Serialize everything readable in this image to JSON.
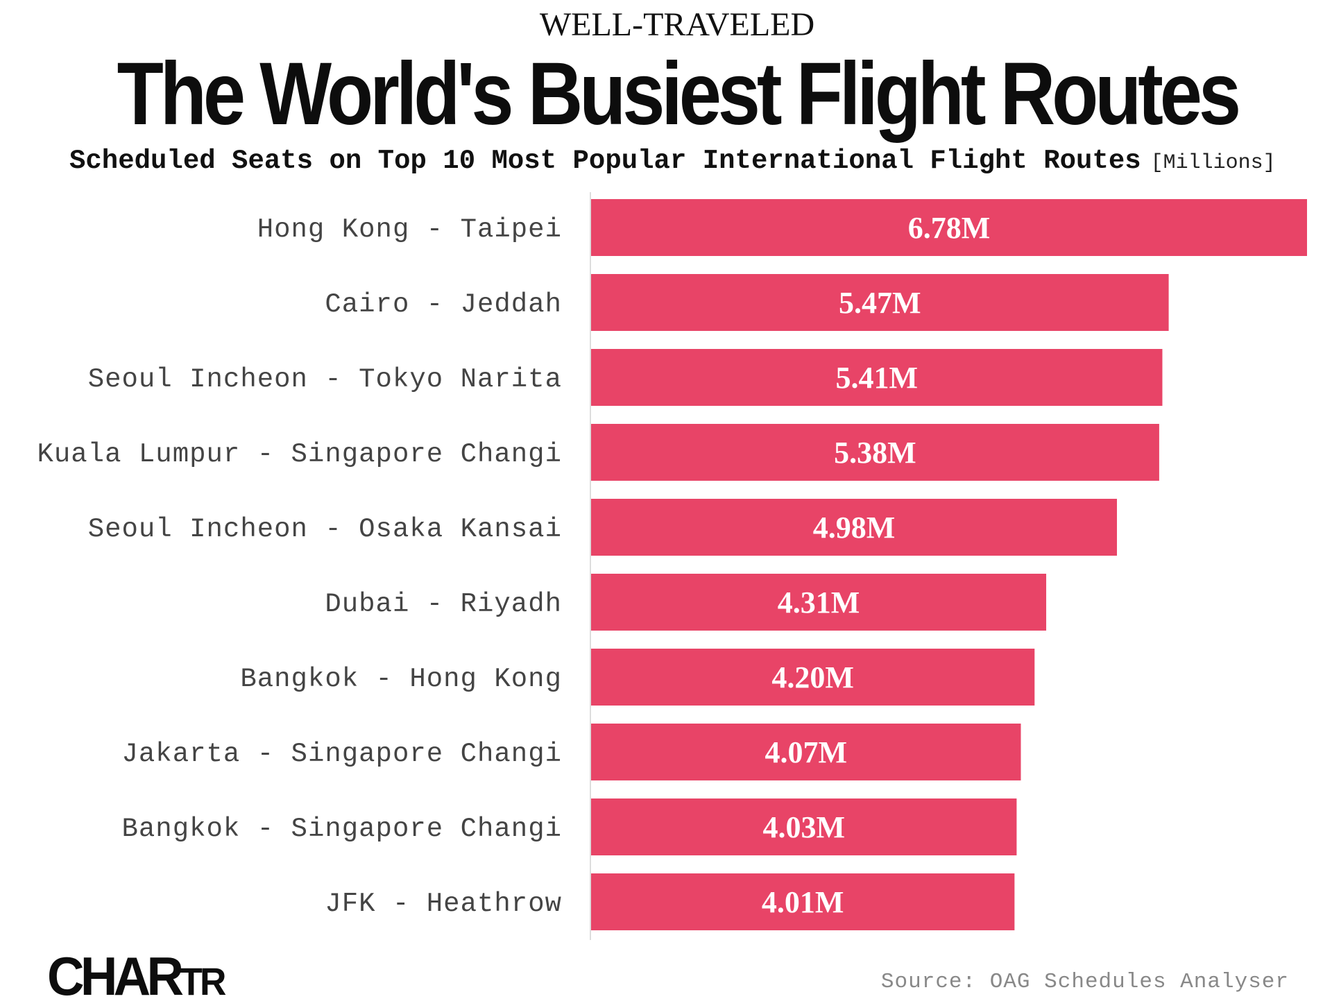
{
  "header": {
    "kicker": "WELL-TRAVELED",
    "title": "The World's Busiest Flight Routes",
    "subtitle": "Scheduled Seats on Top 10 Most Popular International Flight Routes",
    "unit": "[Millions]"
  },
  "footer": {
    "logo_main": "CHAR",
    "logo_small": "TR",
    "source": "Source: OAG Schedules Analyser"
  },
  "colors": {
    "bar": "#e84467",
    "axis": "#dddddd"
  },
  "chart_data": {
    "type": "bar",
    "orientation": "horizontal",
    "categories": [
      "Hong Kong - Taipei",
      "Cairo - Jeddah",
      "Seoul Incheon - Tokyo Narita",
      "Kuala Lumpur - Singapore Changi",
      "Seoul Incheon - Osaka Kansai",
      "Dubai - Riyadh",
      "Bangkok - Hong Kong",
      "Jakarta - Singapore Changi",
      "Bangkok - Singapore Changi",
      "JFK - Heathrow"
    ],
    "values": [
      6.78,
      5.47,
      5.41,
      5.38,
      4.98,
      4.31,
      4.2,
      4.07,
      4.03,
      4.01
    ],
    "value_labels": [
      "6.78M",
      "5.47M",
      "5.41M",
      "5.38M",
      "4.98M",
      "4.31M",
      "4.20M",
      "4.07M",
      "4.03M",
      "4.01M"
    ],
    "title": "The World's Busiest Flight Routes",
    "subtitle": "Scheduled Seats on Top 10 Most Popular International Flight Routes",
    "xlim": [
      0,
      6.78
    ],
    "grid": false,
    "legend": "none"
  }
}
